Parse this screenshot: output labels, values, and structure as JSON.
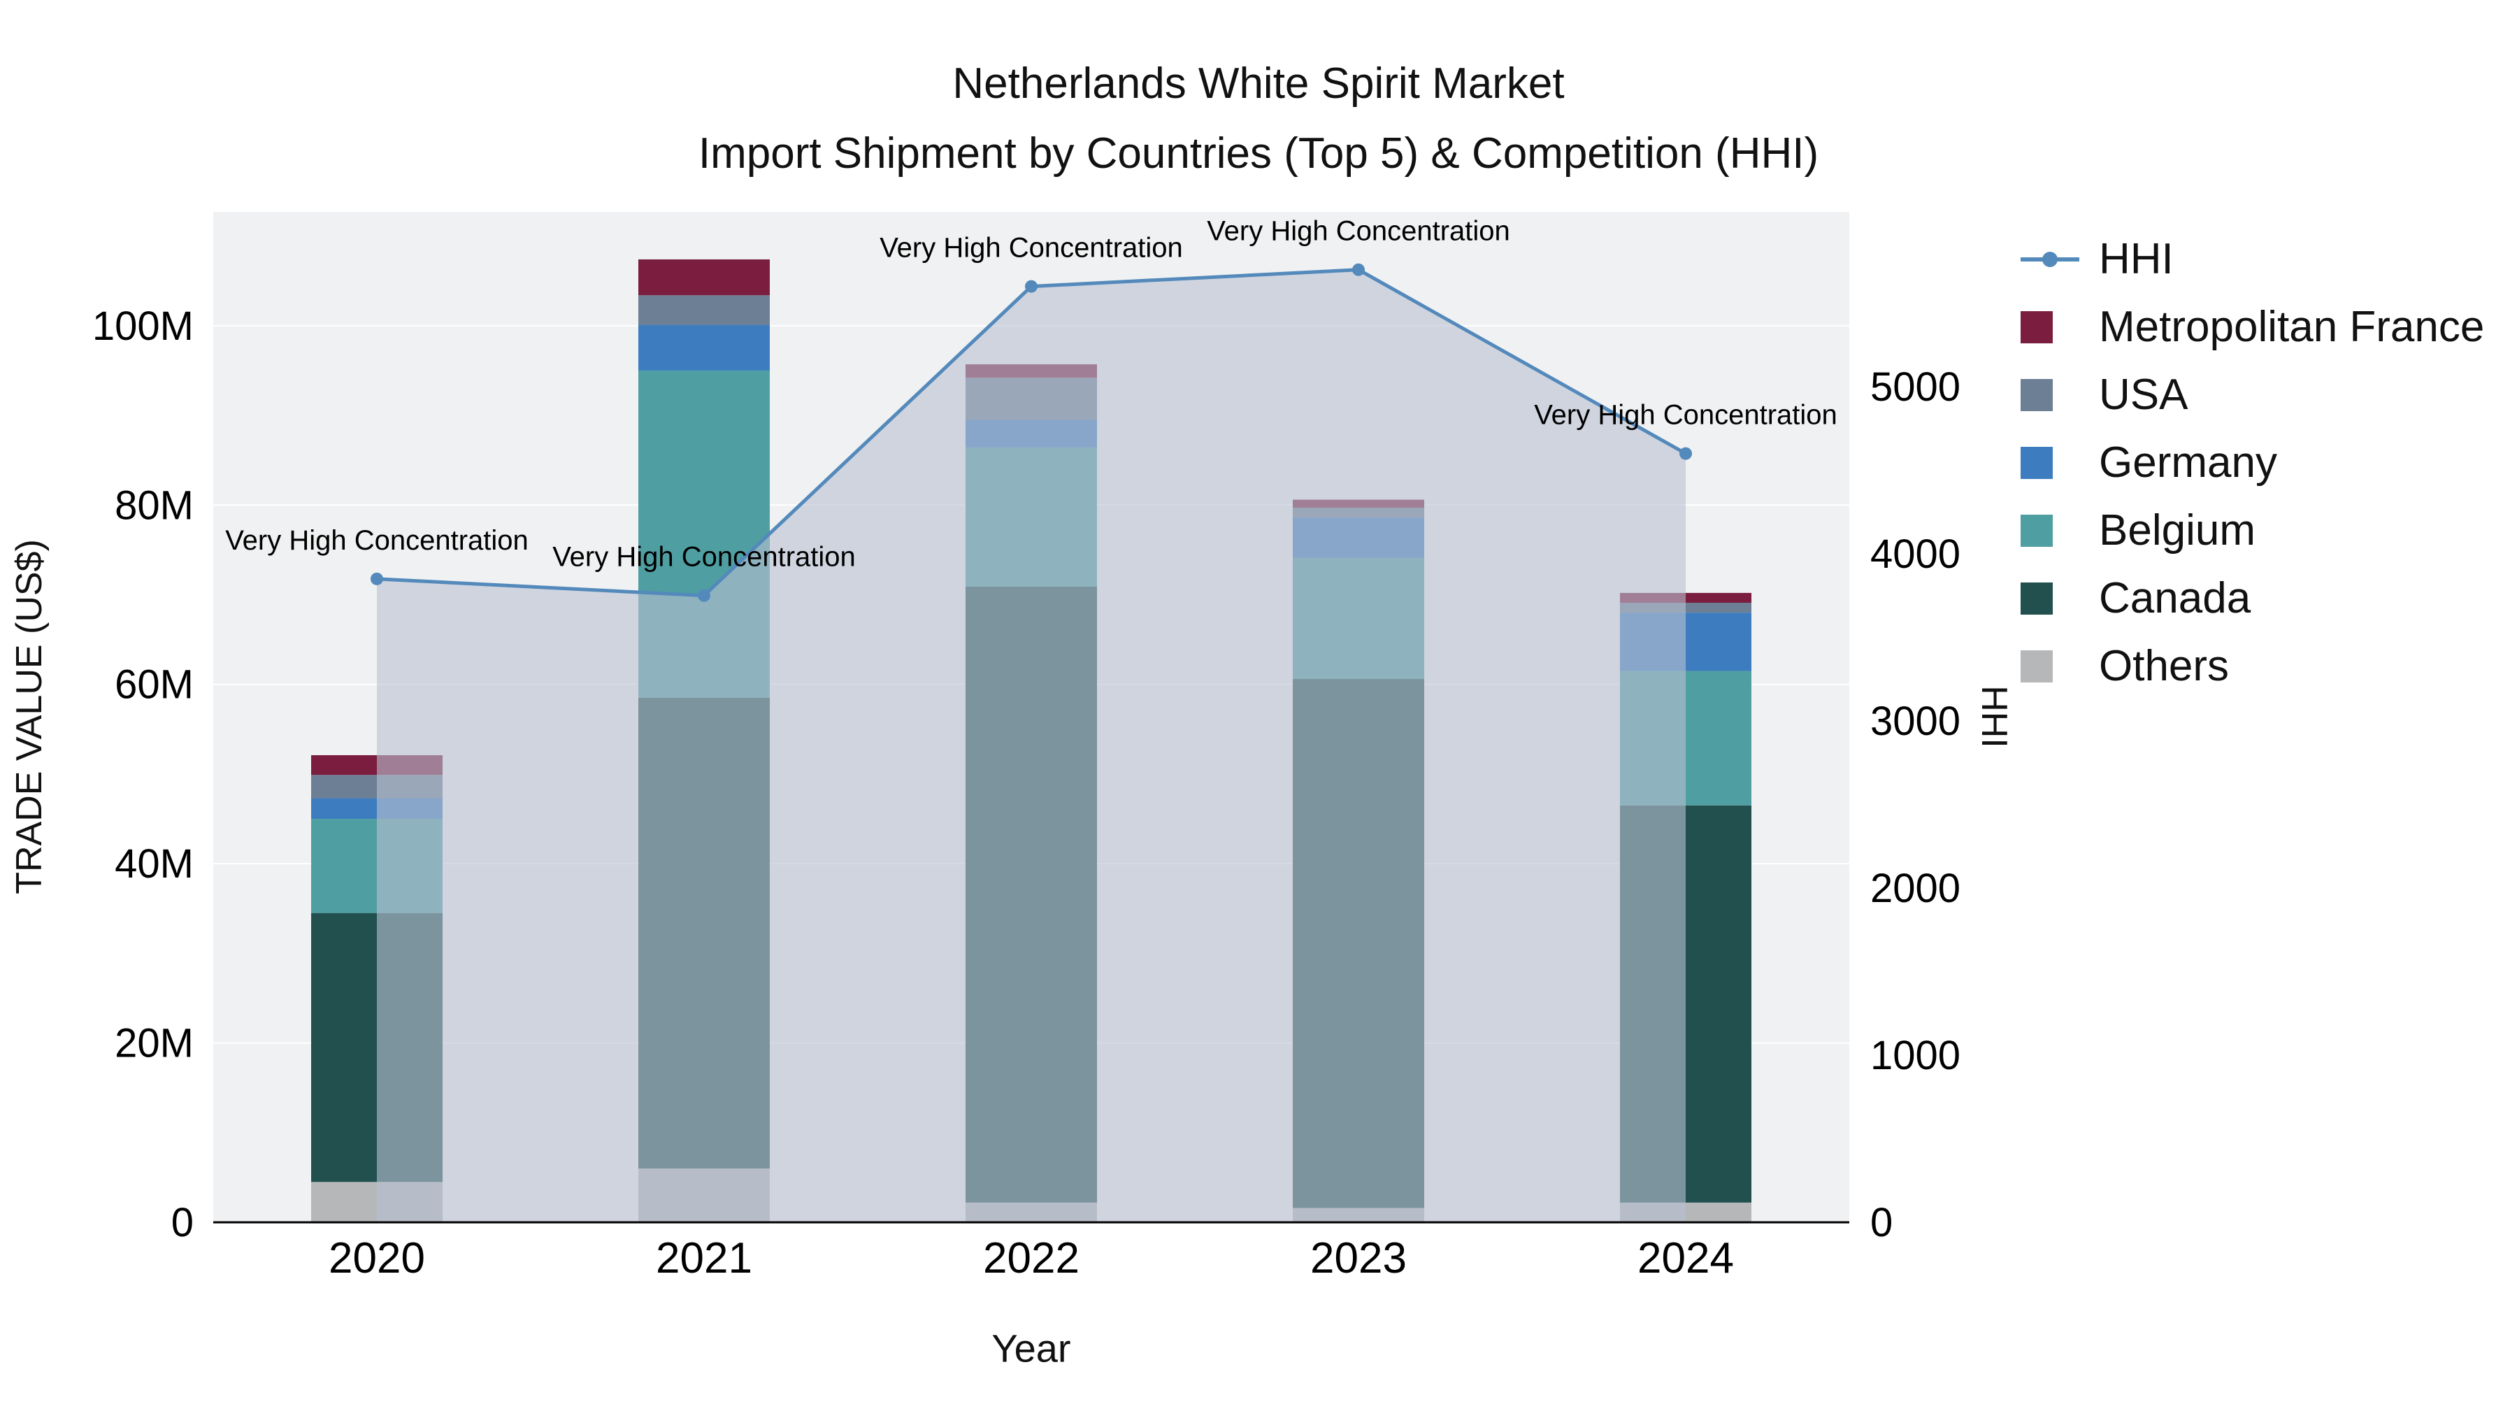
{
  "chart_data": {
    "type": "bar",
    "stacked": true,
    "title": "Netherlands White Spirit Market",
    "subtitle": "Import Shipment by Countries (Top 5) & Competition (HHI)",
    "xlabel": "Year",
    "ylabel_left": "TRADE VALUE (US$)",
    "ylabel_right": "HHI",
    "value_unit": "USD millions",
    "categories": [
      "2020",
      "2021",
      "2022",
      "2023",
      "2024"
    ],
    "series": [
      {
        "name": "Others",
        "color": "#b5b7b9",
        "values": [
          4.5,
          6.0,
          2.2,
          1.6,
          2.2
        ]
      },
      {
        "name": "Canada",
        "color": "#21504f",
        "values": [
          30.0,
          52.5,
          68.7,
          59.0,
          44.3
        ]
      },
      {
        "name": "Belgium",
        "color": "#4f9fa2",
        "values": [
          10.5,
          36.5,
          15.5,
          13.5,
          15.0
        ]
      },
      {
        "name": "Germany",
        "color": "#3d7dbf",
        "values": [
          2.3,
          5.1,
          3.1,
          4.5,
          6.5
        ]
      },
      {
        "name": "USA",
        "color": "#6d7f94",
        "values": [
          2.6,
          3.3,
          4.7,
          1.1,
          1.1
        ]
      },
      {
        "name": "Metropolitan France",
        "color": "#7a1d3e",
        "values": [
          2.2,
          4.0,
          1.5,
          0.9,
          1.1
        ]
      }
    ],
    "line_series": {
      "name": "HHI",
      "color": "#5389bb",
      "area_fill": "#b9c2d2",
      "area_opacity": 0.6,
      "values": [
        3850,
        3750,
        5600,
        5700,
        4600
      ]
    },
    "annotations": [
      "Very High Concentration",
      "Very High Concentration",
      "Very High Concentration",
      "Very High Concentration",
      "Very High Concentration"
    ],
    "left_axis": {
      "ticks": [
        "0",
        "20M",
        "40M",
        "60M",
        "80M",
        "100M"
      ],
      "tick_values": [
        0,
        20,
        40,
        60,
        80,
        100
      ],
      "range": [
        0,
        112.7
      ]
    },
    "right_axis": {
      "ticks": [
        "0",
        "1000",
        "2000",
        "3000",
        "4000",
        "5000"
      ],
      "tick_values": [
        0,
        1000,
        2000,
        3000,
        4000,
        5000
      ],
      "range": [
        0,
        6046
      ]
    },
    "colors": {
      "plot_bg": "#f0f1f2",
      "grid": "#ffffff",
      "axis_text": "#000000"
    }
  }
}
